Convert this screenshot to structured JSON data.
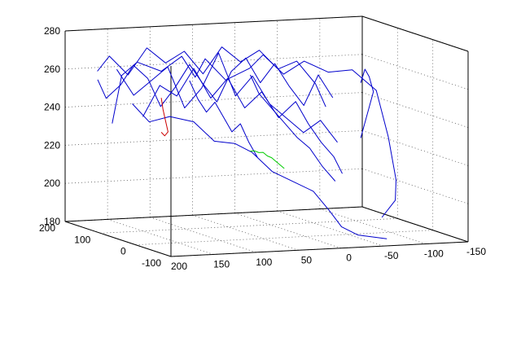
{
  "chart_data": {
    "type": "line",
    "title": "",
    "xlabel": "",
    "ylabel": "",
    "zlabel": "",
    "grid": true,
    "projection": "3d",
    "xlim": [
      -150,
      200
    ],
    "ylim": [
      -100,
      200
    ],
    "zlim": [
      180,
      280
    ],
    "x_ticks": [
      "200",
      "150",
      "100",
      "50",
      "0",
      "-50",
      "-100",
      "-150"
    ],
    "x_tick_values": [
      200,
      150,
      100,
      50,
      0,
      -50,
      -100,
      -150
    ],
    "y_ticks": [
      "-100",
      "0",
      "100",
      "200"
    ],
    "y_tick_values": [
      -100,
      0,
      100,
      200
    ],
    "z_ticks": [
      "180",
      "200",
      "220",
      "240",
      "260",
      "280"
    ],
    "z_tick_values": [
      180,
      200,
      220,
      240,
      260,
      280
    ],
    "series": [
      {
        "color": "#0000cc",
        "points": [
          [
            155,
            175,
            232
          ],
          [
            150,
            160,
            258
          ],
          [
            140,
            140,
            266
          ],
          [
            120,
            120,
            262
          ],
          [
            100,
            110,
            270
          ],
          [
            80,
            120,
            258
          ],
          [
            60,
            140,
            266
          ],
          [
            40,
            130,
            255
          ],
          [
            20,
            110,
            262
          ],
          [
            0,
            120,
            268
          ],
          [
            -20,
            110,
            258
          ],
          [
            -40,
            100,
            265
          ],
          [
            -60,
            80,
            260
          ],
          [
            -80,
            60,
            262
          ],
          [
            -100,
            40,
            252
          ],
          [
            -110,
            30,
            228
          ],
          [
            -115,
            20,
            206
          ],
          [
            -110,
            10,
            196
          ],
          [
            -90,
            0,
            188
          ]
        ]
      },
      {
        "color": "#0000cc",
        "points": [
          [
            160,
            150,
            262
          ],
          [
            140,
            150,
            248
          ],
          [
            120,
            150,
            255
          ],
          [
            100,
            150,
            262
          ],
          [
            80,
            150,
            240
          ],
          [
            60,
            150,
            250
          ],
          [
            40,
            150,
            268
          ],
          [
            20,
            150,
            245
          ],
          [
            0,
            150,
            255
          ],
          [
            -20,
            150,
            240
          ],
          [
            -40,
            150,
            232
          ],
          [
            -60,
            150,
            224
          ],
          [
            -80,
            150,
            230
          ],
          [
            -100,
            150,
            218
          ]
        ]
      },
      {
        "color": "#0000cc",
        "points": [
          [
            150,
            130,
            245
          ],
          [
            130,
            130,
            235
          ],
          [
            110,
            120,
            238
          ],
          [
            90,
            100,
            236
          ],
          [
            70,
            90,
            226
          ],
          [
            50,
            80,
            225
          ],
          [
            30,
            80,
            220
          ],
          [
            10,
            70,
            210
          ],
          [
            -10,
            60,
            205
          ],
          [
            -30,
            50,
            200
          ],
          [
            -45,
            40,
            190
          ],
          [
            -55,
            30,
            182
          ],
          [
            -70,
            20,
            178
          ],
          [
            -100,
            10,
            176
          ]
        ]
      },
      {
        "color": "#0000cc",
        "points": [
          [
            162,
            200,
            258
          ],
          [
            150,
            195,
            266
          ],
          [
            130,
            190,
            256
          ],
          [
            110,
            185,
            270
          ],
          [
            90,
            180,
            262
          ],
          [
            70,
            175,
            268
          ],
          [
            50,
            170,
            256
          ],
          [
            30,
            165,
            270
          ],
          [
            10,
            160,
            262
          ],
          [
            -10,
            155,
            268
          ],
          [
            -30,
            150,
            258
          ],
          [
            -50,
            145,
            262
          ],
          [
            -70,
            140,
            250
          ],
          [
            -80,
            135,
            238
          ]
        ]
      },
      {
        "color": "#0000cc",
        "points": [
          [
            150,
            100,
            240
          ],
          [
            130,
            100,
            256
          ],
          [
            110,
            100,
            250
          ],
          [
            90,
            100,
            264
          ],
          [
            70,
            100,
            248
          ],
          [
            50,
            100,
            258
          ],
          [
            30,
            100,
            242
          ],
          [
            10,
            100,
            250
          ],
          [
            -10,
            100,
            236
          ],
          [
            -30,
            100,
            244
          ],
          [
            -45,
            100,
            232
          ],
          [
            -60,
            100,
            222
          ],
          [
            -75,
            100,
            214
          ],
          [
            -85,
            100,
            205
          ]
        ]
      },
      {
        "color": "#0000cc",
        "points": [
          [
            170,
            180,
            255
          ],
          [
            160,
            180,
            245
          ],
          [
            145,
            175,
            252
          ],
          [
            130,
            175,
            262
          ],
          [
            115,
            170,
            255
          ],
          [
            100,
            170,
            240
          ],
          [
            85,
            165,
            250
          ],
          [
            70,
            160,
            262
          ],
          [
            55,
            160,
            252
          ],
          [
            40,
            155,
            242
          ],
          [
            25,
            150,
            258
          ],
          [
            10,
            145,
            265
          ],
          [
            -5,
            140,
            252
          ],
          [
            -20,
            135,
            262
          ],
          [
            -35,
            130,
            250
          ],
          [
            -50,
            125,
            240
          ],
          [
            -65,
            120,
            256
          ],
          [
            -80,
            115,
            244
          ]
        ]
      },
      {
        "color": "#0000cc",
        "points": [
          [
            -90,
            60,
            255
          ],
          [
            -95,
            60,
            262
          ],
          [
            -100,
            60,
            258
          ],
          [
            -105,
            60,
            250
          ],
          [
            -100,
            60,
            242
          ],
          [
            -95,
            60,
            234
          ],
          [
            -90,
            60,
            226
          ]
        ]
      },
      {
        "color": "#0000cc",
        "points": [
          [
            40,
            60,
            262
          ],
          [
            30,
            60,
            252
          ],
          [
            15,
            60,
            244
          ],
          [
            0,
            60,
            236
          ],
          [
            -15,
            60,
            228
          ],
          [
            -30,
            60,
            222
          ],
          [
            -45,
            60,
            212
          ],
          [
            -60,
            60,
            204
          ]
        ]
      },
      {
        "color": "#0000cc",
        "points": [
          [
            120,
            40,
            262
          ],
          [
            110,
            40,
            252
          ],
          [
            100,
            40,
            245
          ],
          [
            90,
            40,
            250
          ],
          [
            80,
            40,
            242
          ],
          [
            70,
            40,
            234
          ],
          [
            60,
            40,
            238
          ],
          [
            50,
            40,
            228
          ],
          [
            40,
            40,
            220
          ]
        ]
      },
      {
        "color": "#cc0000",
        "points": [
          [
            120,
            120,
            248
          ],
          [
            118,
            120,
            242
          ],
          [
            115,
            120,
            236
          ],
          [
            112,
            120,
            230
          ],
          [
            116,
            120,
            228
          ],
          [
            120,
            120,
            230
          ]
        ]
      },
      {
        "color": "#00cc00",
        "points": [
          [
            40,
            60,
            222
          ],
          [
            35,
            60,
            222
          ],
          [
            30,
            60,
            221
          ],
          [
            25,
            60,
            221
          ],
          [
            20,
            60,
            219
          ],
          [
            15,
            60,
            218
          ],
          [
            10,
            60,
            216
          ],
          [
            5,
            60,
            214
          ],
          [
            0,
            60,
            212
          ]
        ]
      }
    ]
  }
}
